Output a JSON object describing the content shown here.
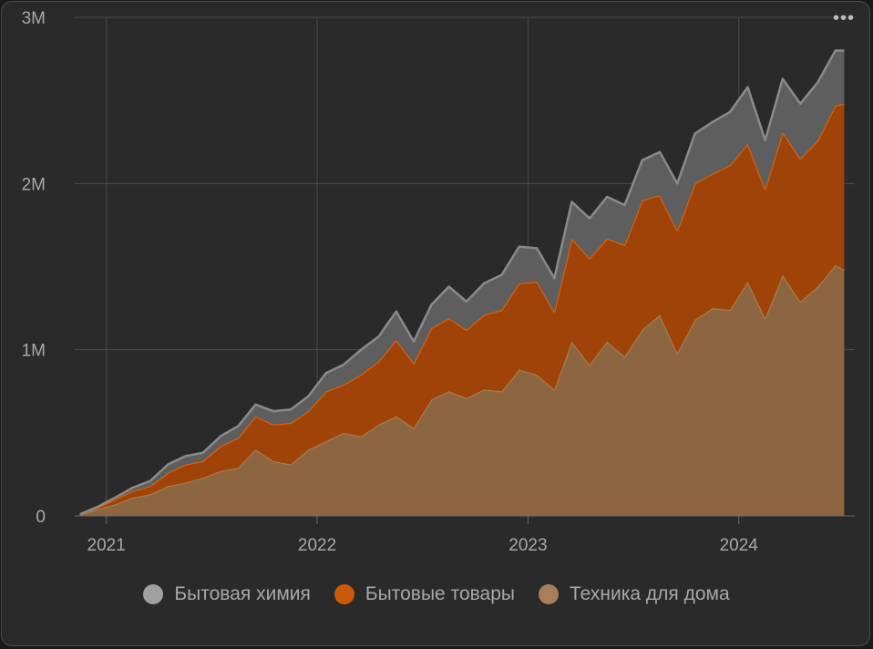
{
  "menu_label": "•••",
  "chart_data": {
    "type": "area",
    "stacked": true,
    "y_ticks": [
      {
        "value": 0,
        "label": "0"
      },
      {
        "value": 1000000,
        "label": "1M"
      },
      {
        "value": 2000000,
        "label": "2M"
      },
      {
        "value": 3000000,
        "label": "3M"
      }
    ],
    "x_ticks": [
      {
        "value": 2021.0,
        "label": "2021"
      },
      {
        "value": 2022.0,
        "label": "2022"
      },
      {
        "value": 2023.0,
        "label": "2023"
      },
      {
        "value": 2024.0,
        "label": "2024"
      }
    ],
    "xlim": [
      2020.85,
      2024.55
    ],
    "ylim": [
      0,
      3000000
    ],
    "grid": true,
    "legend_position": "bottom",
    "x": [
      2020.875,
      2020.958,
      2021.042,
      2021.125,
      2021.208,
      2021.292,
      2021.375,
      2021.458,
      2021.542,
      2021.625,
      2021.708,
      2021.792,
      2021.875,
      2021.958,
      2022.042,
      2022.125,
      2022.208,
      2022.292,
      2022.375,
      2022.458,
      2022.542,
      2022.625,
      2022.708,
      2022.792,
      2022.875,
      2022.958,
      2023.042,
      2023.125,
      2023.208,
      2023.292,
      2023.375,
      2023.458,
      2023.542,
      2023.625,
      2023.708,
      2023.792,
      2023.875,
      2023.958,
      2024.042,
      2024.125,
      2024.208,
      2024.292,
      2024.375,
      2024.458,
      2024.5
    ],
    "series": [
      {
        "name": "Техника для дома",
        "color": "#8c6640",
        "line": "#a37a50",
        "values": [
          5000,
          40000,
          70000,
          110000,
          130000,
          180000,
          200000,
          230000,
          270000,
          290000,
          400000,
          330000,
          310000,
          400000,
          450000,
          500000,
          480000,
          550000,
          600000,
          530000,
          700000,
          750000,
          710000,
          760000,
          750000,
          880000,
          850000,
          760000,
          1050000,
          910000,
          1050000,
          960000,
          1120000,
          1210000,
          980000,
          1180000,
          1250000,
          1240000,
          1410000,
          1190000,
          1450000,
          1290000,
          1380000,
          1510000,
          1480000
        ]
      },
      {
        "name": "Бытовые товары",
        "color": "#a04308",
        "line": "#d46010",
        "values": [
          3000,
          10000,
          30000,
          40000,
          50000,
          80000,
          110000,
          100000,
          150000,
          180000,
          200000,
          220000,
          250000,
          230000,
          300000,
          290000,
          370000,
          380000,
          460000,
          390000,
          430000,
          440000,
          410000,
          450000,
          490000,
          520000,
          560000,
          470000,
          620000,
          640000,
          620000,
          670000,
          780000,
          720000,
          740000,
          820000,
          810000,
          870000,
          830000,
          780000,
          860000,
          860000,
          880000,
          960000,
          1000000
        ]
      },
      {
        "name": "Бытовая химия",
        "color": "#5e5e5e",
        "line": "#8a8a8a",
        "values": [
          2000,
          5000,
          10000,
          20000,
          30000,
          50000,
          50000,
          50000,
          60000,
          70000,
          70000,
          80000,
          80000,
          90000,
          110000,
          120000,
          150000,
          150000,
          170000,
          130000,
          140000,
          190000,
          170000,
          190000,
          210000,
          220000,
          200000,
          200000,
          220000,
          240000,
          250000,
          240000,
          240000,
          260000,
          280000,
          300000,
          310000,
          320000,
          340000,
          290000,
          320000,
          330000,
          350000,
          330000,
          320000
        ]
      }
    ]
  }
}
